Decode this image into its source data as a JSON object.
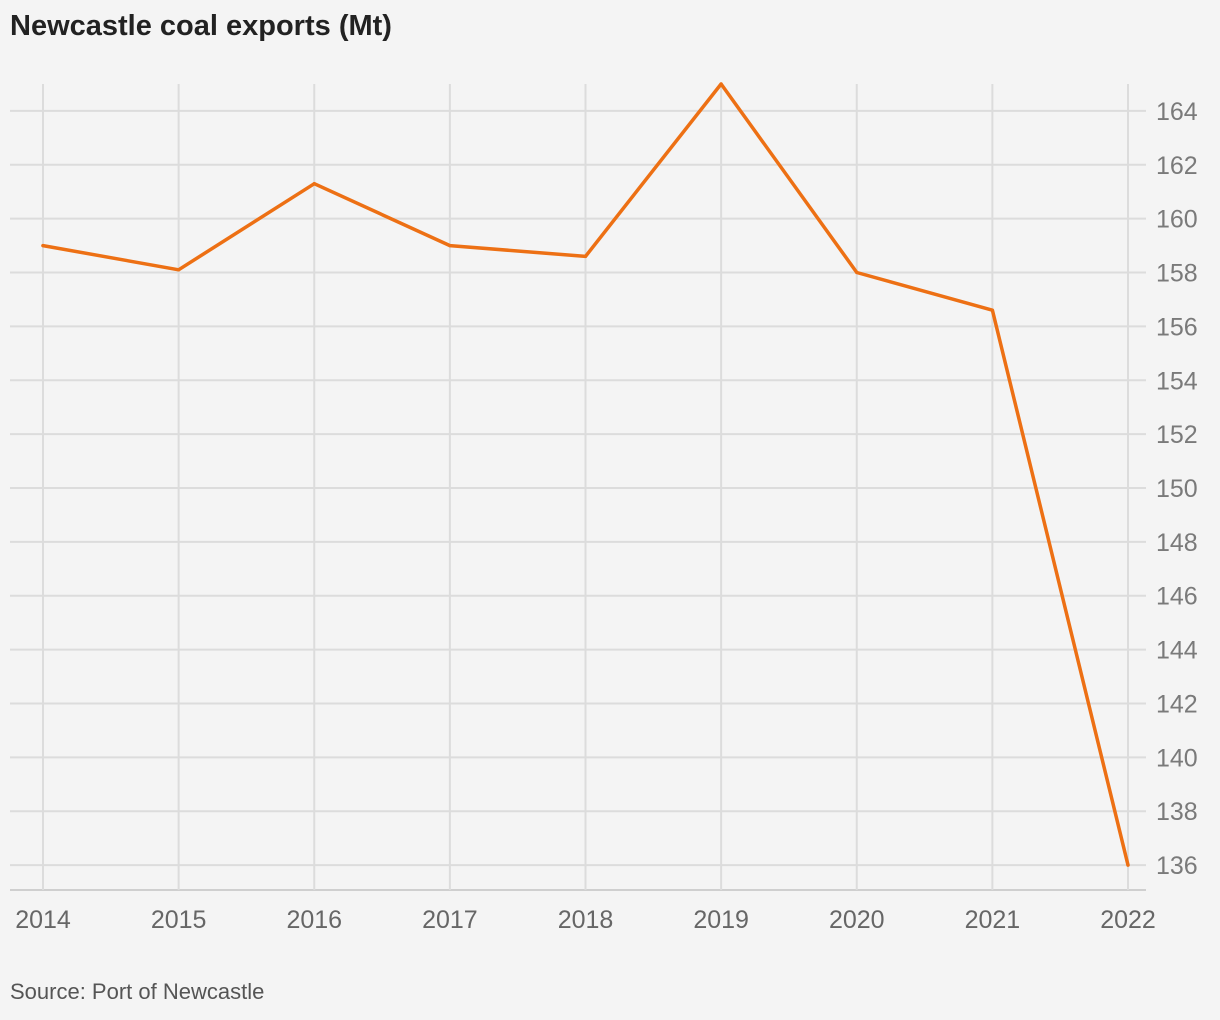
{
  "title": "Newcastle coal exports (Mt)",
  "source": "Source: Port of Newcastle",
  "colors": {
    "line": "#ed7014",
    "grid": "#dcdcdc",
    "background": "#f4f4f4"
  },
  "chart_data": {
    "type": "line",
    "title": "Newcastle coal exports (Mt)",
    "xlabel": "",
    "ylabel": "",
    "x": [
      "2014",
      "2015",
      "2016",
      "2017",
      "2018",
      "2019",
      "2020",
      "2021",
      "2022"
    ],
    "series": [
      {
        "values": [
          159.0,
          158.1,
          161.3,
          159.0,
          158.6,
          165.0,
          158.0,
          156.6,
          136.0
        ]
      }
    ],
    "y_ticks": [
      136,
      138,
      140,
      142,
      144,
      146,
      148,
      150,
      152,
      154,
      156,
      158,
      160,
      162,
      164
    ],
    "ylim": [
      135,
      165
    ],
    "y_axis_side": "right",
    "grid": true,
    "legend": "none"
  }
}
